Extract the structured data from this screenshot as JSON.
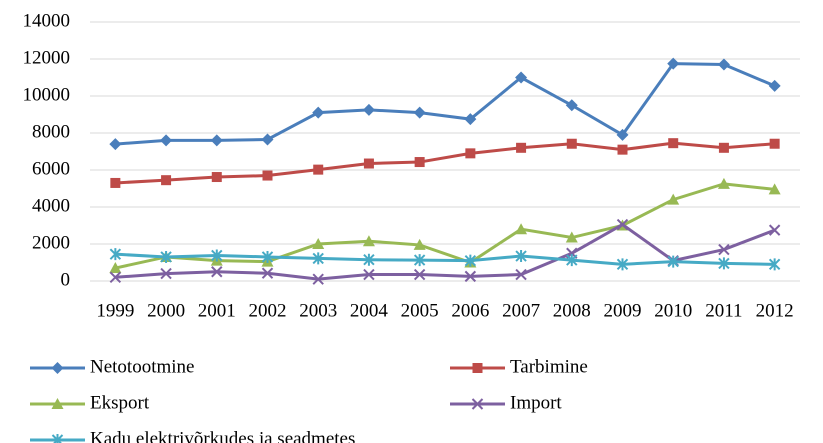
{
  "chart_data": {
    "type": "line",
    "categories": [
      "1999",
      "2000",
      "2001",
      "2002",
      "2003",
      "2004",
      "2005",
      "2006",
      "2007",
      "2008",
      "2009",
      "2010",
      "2011",
      "2012"
    ],
    "series": [
      {
        "name": "Netotootmine",
        "color": "#4a7ebb",
        "marker": "diamond",
        "values": [
          7400,
          7600,
          7600,
          7650,
          9100,
          9250,
          9100,
          8750,
          11000,
          9500,
          7900,
          11750,
          11700,
          10550
        ]
      },
      {
        "name": "Tarbimine",
        "color": "#be4b48",
        "marker": "square",
        "values": [
          5300,
          5450,
          5620,
          5700,
          6020,
          6350,
          6430,
          6900,
          7200,
          7420,
          7100,
          7450,
          7200,
          7420
        ]
      },
      {
        "name": "Eksport",
        "color": "#98b954",
        "marker": "triangle",
        "values": [
          700,
          1300,
          1100,
          1050,
          2000,
          2150,
          1950,
          1000,
          2800,
          2350,
          3000,
          4400,
          5250,
          4950
        ]
      },
      {
        "name": "Import",
        "color": "#7d60a0",
        "marker": "x",
        "values": [
          200,
          400,
          500,
          420,
          100,
          350,
          350,
          250,
          350,
          1500,
          3050,
          1100,
          1700,
          2750
        ]
      },
      {
        "name": "Kadu elektrivõrkudes ja seadmetes",
        "color": "#46aac5",
        "marker": "star",
        "values": [
          1450,
          1300,
          1380,
          1300,
          1220,
          1150,
          1130,
          1100,
          1350,
          1130,
          900,
          1050,
          950,
          900
        ]
      }
    ],
    "ylim": [
      0,
      14000
    ],
    "yticks": [
      0,
      2000,
      4000,
      6000,
      8000,
      10000,
      12000,
      14000
    ],
    "grid": true
  }
}
